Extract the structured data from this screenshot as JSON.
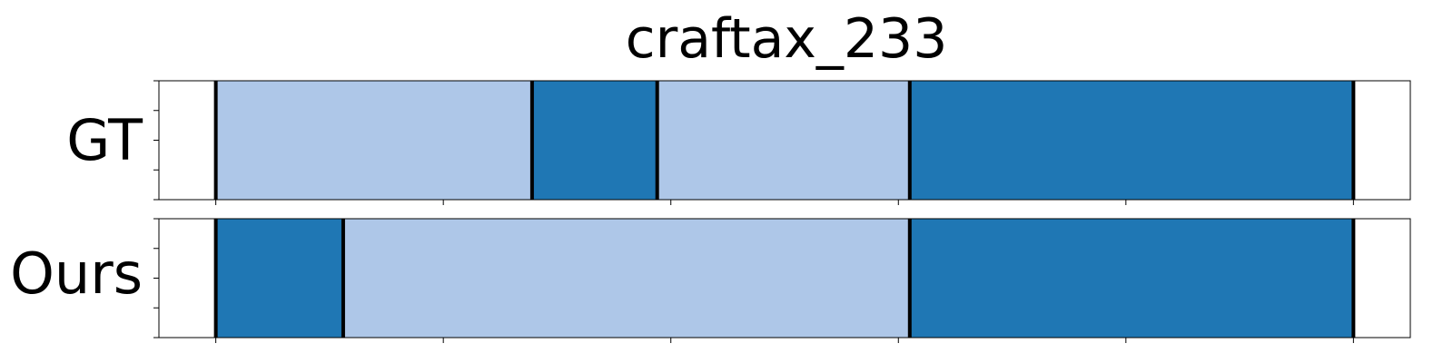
{
  "chart_data": {
    "type": "bar",
    "title": "craftax_233",
    "xlabel": "",
    "ylabel": "",
    "xlim": [
      0,
      550
    ],
    "xticks": [
      25,
      125,
      225,
      325,
      425,
      525
    ],
    "x_tick_labels_shown": false,
    "y_tick_labels_shown": false,
    "grid": false,
    "legend": false,
    "colors": {
      "light": "#aec7e8",
      "dark": "#1f77b4",
      "boundary": "#000000",
      "axes_edge": "#000000"
    },
    "rows": [
      {
        "label": "GT",
        "segments": [
          {
            "start": 25,
            "end": 164,
            "color": "light"
          },
          {
            "start": 164,
            "end": 219,
            "color": "dark"
          },
          {
            "start": 219,
            "end": 330,
            "color": "light"
          },
          {
            "start": 330,
            "end": 525,
            "color": "dark"
          }
        ],
        "boundaries": [
          25,
          164,
          219,
          330,
          525
        ]
      },
      {
        "label": "Ours",
        "segments": [
          {
            "start": 25,
            "end": 81,
            "color": "dark"
          },
          {
            "start": 81,
            "end": 330,
            "color": "light"
          },
          {
            "start": 330,
            "end": 525,
            "color": "dark"
          }
        ],
        "boundaries": [
          25,
          81,
          330,
          525
        ]
      }
    ]
  }
}
